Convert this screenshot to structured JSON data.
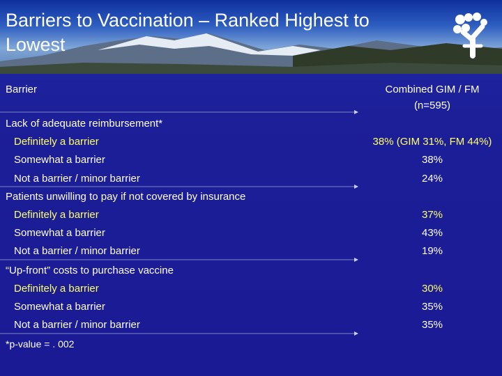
{
  "slide": {
    "title": "Barriers to Vaccination – Ranked Highest to Lowest",
    "logo_icon": "people-figure-icon",
    "col_barrier": "Barrier",
    "col_combined_line1": "Combined GIM / FM",
    "col_combined_line2": "(n=595)",
    "accent_color": "#ffff66",
    "background_color": "#1a1a94",
    "sections": [
      {
        "heading": "Lack of adequate reimbursement*",
        "rows": [
          {
            "label": "Definitely a barrier",
            "value": "38% (GIM 31%, FM 44%)",
            "highlight": true
          },
          {
            "label": "Somewhat a barrier",
            "value": "38%",
            "highlight": false
          },
          {
            "label": "Not a barrier / minor barrier",
            "value": "24%",
            "highlight": false
          }
        ]
      },
      {
        "heading": "Patients unwilling to pay if not covered by insurance",
        "rows": [
          {
            "label": "Definitely a barrier",
            "value": "37%",
            "highlight": true
          },
          {
            "label": "Somewhat a barrier",
            "value": "43%",
            "highlight": false
          },
          {
            "label": "Not a barrier / minor barrier",
            "value": "19%",
            "highlight": false
          }
        ]
      },
      {
        "heading": "“Up-front” costs to purchase vaccine",
        "rows": [
          {
            "label": "Definitely a barrier",
            "value": "30%",
            "highlight": true
          },
          {
            "label": "Somewhat a barrier",
            "value": "35%",
            "highlight": false
          },
          {
            "label": "Not a barrier / minor barrier",
            "value": "35%",
            "highlight": false
          }
        ]
      }
    ],
    "footnote": "*p-value = . 002"
  }
}
